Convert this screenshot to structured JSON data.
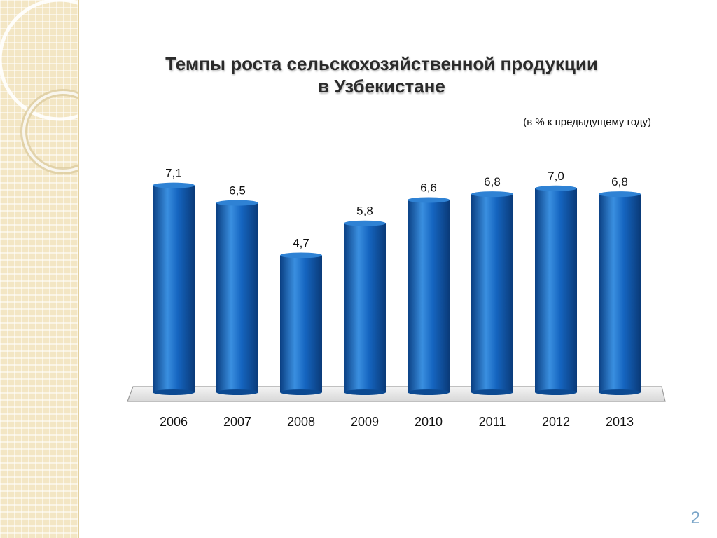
{
  "title": {
    "line1": "Темпы роста сельскохозяйственной продукции",
    "line2": "в Узбекистане"
  },
  "subtitle": "(в % к предыдущему году)",
  "page_number": "2",
  "colors": {
    "bar": "#1565c0",
    "bar_light": "#3a8fe0",
    "bar_dark": "#0a3f82",
    "sidebar": "#f3e6c4"
  },
  "chart_data": {
    "type": "bar",
    "title": "Темпы роста сельскохозяйственной продукции в Узбекистане",
    "subtitle": "(в % к предыдущему году)",
    "categories": [
      "2006",
      "2007",
      "2008",
      "2009",
      "2010",
      "2011",
      "2012",
      "2013"
    ],
    "values": [
      7.1,
      6.5,
      4.7,
      5.8,
      6.6,
      6.8,
      7.0,
      6.8
    ],
    "labels": [
      "7,1",
      "6,5",
      "4,7",
      "5,8",
      "6,6",
      "6,8",
      "7,0",
      "6,8"
    ],
    "ylim": [
      0,
      7.5
    ],
    "grid": false,
    "legend": "none"
  }
}
